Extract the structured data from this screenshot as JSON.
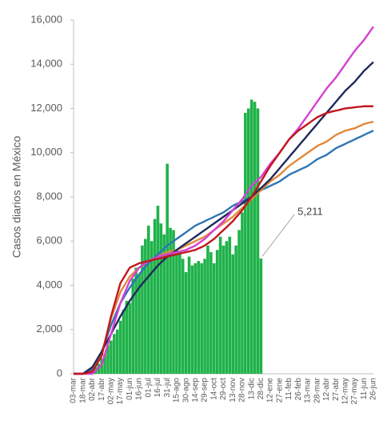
{
  "chart_data": {
    "type": "combo",
    "y_label": "Casos diarios en México",
    "ylim": [
      0,
      16000
    ],
    "yticks": [
      0,
      {
        "value": 2000,
        "label": "2,000"
      },
      {
        "value": 4000,
        "label": "4,000"
      },
      {
        "value": 6000,
        "label": "6,000"
      },
      {
        "value": 8000,
        "label": "8,000"
      },
      {
        "value": 10000,
        "label": "10,000"
      },
      {
        "value": 12000,
        "label": "12,000"
      },
      {
        "value": 14000,
        "label": "14,000"
      },
      {
        "value": 16000,
        "label": "16,000"
      }
    ],
    "grid": false,
    "categories": [
      "03-mar",
      null,
      null,
      "18-mar",
      null,
      null,
      "02-abr",
      null,
      null,
      "17-abr",
      null,
      null,
      "02-may",
      null,
      null,
      "17-may",
      null,
      null,
      "01-jun",
      null,
      null,
      "16-jun",
      null,
      null,
      "01-jul",
      null,
      null,
      "16-jul",
      null,
      null,
      "31-jul",
      null,
      null,
      "15-ago",
      null,
      null,
      "30-ago",
      null,
      null,
      "14-sep",
      null,
      null,
      "29-sep",
      null,
      null,
      "14-oct",
      null,
      null,
      "29-oct",
      null,
      null,
      "13-nov",
      null,
      null,
      "28-nov",
      null,
      null,
      "13-dic",
      null,
      null,
      "28-dic",
      null,
      null,
      "12-ene",
      null,
      null,
      "27-ene",
      null,
      null,
      "11-feb",
      null,
      null,
      "26-feb",
      null,
      null,
      "13-mar",
      null,
      null,
      "28-mar",
      null,
      null,
      "12-abr",
      null,
      null,
      "27-abr",
      null,
      null,
      "12-may",
      null,
      null,
      "27-may",
      null,
      null,
      "11-jun",
      null,
      null,
      "26-jun"
    ],
    "series": [
      {
        "type": "bar",
        "color": "#1fb24a",
        "values": [
          0,
          0,
          10,
          30,
          60,
          120,
          180,
          300,
          450,
          700,
          900,
          1300,
          1500,
          1800,
          2000,
          2400,
          2900,
          3300,
          3200,
          4300,
          4800,
          4500,
          5800,
          6100,
          6700,
          6000,
          7000,
          7600,
          6800,
          6300,
          9500,
          6600,
          6500,
          5600,
          5500,
          5200,
          4600,
          5300,
          4900,
          5000,
          5100,
          5000,
          5200,
          5800,
          5500,
          5000,
          5600,
          6200,
          5800,
          6000,
          6200,
          5400,
          5800,
          6500,
          7300,
          11800,
          12000,
          12400,
          12300,
          12000,
          5211,
          null,
          null,
          null,
          null,
          null,
          null,
          null,
          null,
          null,
          null,
          null,
          null,
          null,
          null,
          null,
          null,
          null,
          null,
          null,
          null,
          null,
          null,
          null,
          null,
          null,
          null,
          null,
          null,
          null,
          null,
          null,
          null,
          null,
          null,
          null,
          null
        ],
        "value_labels": [
          null,
          null,
          null,
          null,
          null,
          null,
          null,
          null,
          null,
          null,
          null,
          null,
          null,
          null,
          null,
          null,
          null,
          null,
          null,
          null,
          null,
          null,
          null,
          null,
          null,
          null,
          null,
          null,
          null,
          null,
          null,
          null,
          null,
          null,
          null,
          null,
          null,
          null,
          null,
          null,
          null,
          null,
          null,
          null,
          null,
          null,
          null,
          null,
          null,
          null,
          null,
          null,
          null,
          null,
          null,
          null,
          null,
          null,
          null,
          null,
          "5,211",
          null,
          null,
          null,
          null,
          null,
          null,
          null,
          null,
          null,
          null,
          null,
          null,
          null,
          null,
          null,
          null,
          null,
          null,
          null,
          null,
          null,
          null,
          null,
          null,
          null,
          null,
          null,
          null,
          null,
          null,
          null,
          null,
          null,
          null,
          null,
          null
        ]
      },
      {
        "type": "line",
        "color": "#2e75b6",
        "values": [
          0,
          0,
          0,
          0,
          70,
          130,
          200,
          470,
          730,
          1000,
          1400,
          1800,
          2200,
          2530,
          2870,
          3200,
          3430,
          3670,
          3900,
          4100,
          4300,
          4500,
          4670,
          4830,
          5000,
          5130,
          5270,
          5400,
          5530,
          5670,
          5800,
          5900,
          6000,
          6100,
          6200,
          6300,
          6400,
          6500,
          6600,
          6700,
          6770,
          6830,
          6900,
          6970,
          7030,
          7100,
          7170,
          7230,
          7300,
          7400,
          7500,
          7600,
          7670,
          7730,
          7800,
          7870,
          7930,
          8000,
          8100,
          8200,
          8300,
          8370,
          8430,
          8500,
          8570,
          8630,
          8700,
          8800,
          8900,
          9000,
          9070,
          9130,
          9200,
          9270,
          9330,
          9400,
          9500,
          9600,
          9700,
          9770,
          9830,
          9900,
          10000,
          10100,
          10200,
          10270,
          10330,
          10400,
          10470,
          10530,
          10600,
          10670,
          10730,
          10800,
          10870,
          10930,
          11000
        ]
      },
      {
        "type": "line",
        "color": "#e2883c",
        "values": [
          0,
          0,
          0,
          0,
          30,
          70,
          100,
          370,
          630,
          900,
          1430,
          1970,
          2500,
          2900,
          3300,
          3700,
          3930,
          4170,
          4400,
          4530,
          4670,
          4800,
          4900,
          5000,
          5100,
          5170,
          5230,
          5300,
          5370,
          5430,
          5500,
          5530,
          5570,
          5600,
          5670,
          5730,
          5800,
          5870,
          5930,
          6000,
          6070,
          6130,
          6200,
          6300,
          6400,
          6500,
          6600,
          6700,
          6800,
          6900,
          7000,
          7100,
          7230,
          7370,
          7500,
          7630,
          7770,
          7900,
          8030,
          8170,
          8300,
          8430,
          8570,
          8700,
          8800,
          8900,
          9000,
          9130,
          9270,
          9400,
          9500,
          9600,
          9700,
          9800,
          9900,
          10000,
          10100,
          10200,
          10300,
          10370,
          10430,
          10500,
          10600,
          10700,
          10800,
          10870,
          10930,
          11000,
          11030,
          11070,
          11100,
          11170,
          11230,
          11300,
          11330,
          11370,
          11400
        ]
      },
      {
        "type": "line",
        "color": "#1f2a5a",
        "values": [
          0,
          0,
          0,
          0,
          100,
          200,
          300,
          530,
          770,
          1000,
          1270,
          1530,
          1800,
          2070,
          2330,
          2600,
          2830,
          3070,
          3300,
          3500,
          3700,
          3900,
          4070,
          4230,
          4400,
          4570,
          4730,
          4900,
          5030,
          5170,
          5300,
          5400,
          5500,
          5600,
          5700,
          5800,
          5900,
          6000,
          6100,
          6200,
          6300,
          6400,
          6500,
          6600,
          6700,
          6800,
          6900,
          7000,
          7100,
          7200,
          7300,
          7400,
          7500,
          7600,
          7700,
          7800,
          7900,
          8000,
          8130,
          8270,
          8400,
          8530,
          8670,
          8800,
          8970,
          9130,
          9300,
          9470,
          9630,
          9800,
          9970,
          10130,
          10300,
          10470,
          10630,
          10800,
          10970,
          11130,
          11300,
          11470,
          11630,
          11800,
          11970,
          12130,
          12300,
          12470,
          12630,
          12800,
          12930,
          13070,
          13200,
          13370,
          13530,
          13700,
          13830,
          13970,
          14100
        ]
      },
      {
        "type": "line",
        "color": "#d63fd2",
        "values": [
          0,
          0,
          0,
          0,
          0,
          0,
          0,
          130,
          270,
          400,
          870,
          1330,
          1800,
          2270,
          2730,
          3200,
          3530,
          3870,
          4200,
          4400,
          4600,
          4800,
          4900,
          5000,
          5100,
          5170,
          5230,
          5300,
          5330,
          5370,
          5400,
          5430,
          5470,
          5500,
          5530,
          5570,
          5600,
          5670,
          5730,
          5800,
          5900,
          6000,
          6100,
          6230,
          6370,
          6500,
          6630,
          6770,
          6900,
          7070,
          7230,
          7400,
          7570,
          7730,
          7900,
          8100,
          8300,
          8500,
          8630,
          8770,
          8900,
          9100,
          9300,
          9500,
          9670,
          9830,
          10000,
          10200,
          10400,
          10600,
          10770,
          10930,
          11100,
          11300,
          11500,
          11700,
          11900,
          12100,
          12300,
          12500,
          12700,
          12900,
          13070,
          13230,
          13400,
          13600,
          13800,
          14000,
          14200,
          14400,
          14600,
          14770,
          14930,
          15100,
          15300,
          15500,
          15700
        ]
      },
      {
        "type": "line",
        "color": "#c0171c",
        "values": [
          0,
          0,
          0,
          0,
          30,
          70,
          100,
          330,
          570,
          800,
          1400,
          2000,
          2600,
          3100,
          3600,
          4100,
          4330,
          4570,
          4800,
          4870,
          4930,
          5000,
          5030,
          5070,
          5100,
          5130,
          5170,
          5200,
          5230,
          5270,
          5300,
          5330,
          5370,
          5400,
          5430,
          5470,
          5500,
          5530,
          5570,
          5600,
          5670,
          5730,
          5800,
          5900,
          6000,
          6100,
          6230,
          6370,
          6500,
          6630,
          6770,
          6900,
          7070,
          7230,
          7400,
          7600,
          7800,
          8000,
          8230,
          8470,
          8700,
          8930,
          9170,
          9400,
          9600,
          9800,
          10000,
          10200,
          10400,
          10600,
          10730,
          10870,
          11000,
          11100,
          11200,
          11300,
          11400,
          11500,
          11600,
          11670,
          11730,
          11800,
          11830,
          11870,
          11900,
          11930,
          11970,
          12000,
          12020,
          12030,
          12050,
          12070,
          12080,
          12100,
          12100,
          12100,
          12100
        ]
      }
    ]
  }
}
